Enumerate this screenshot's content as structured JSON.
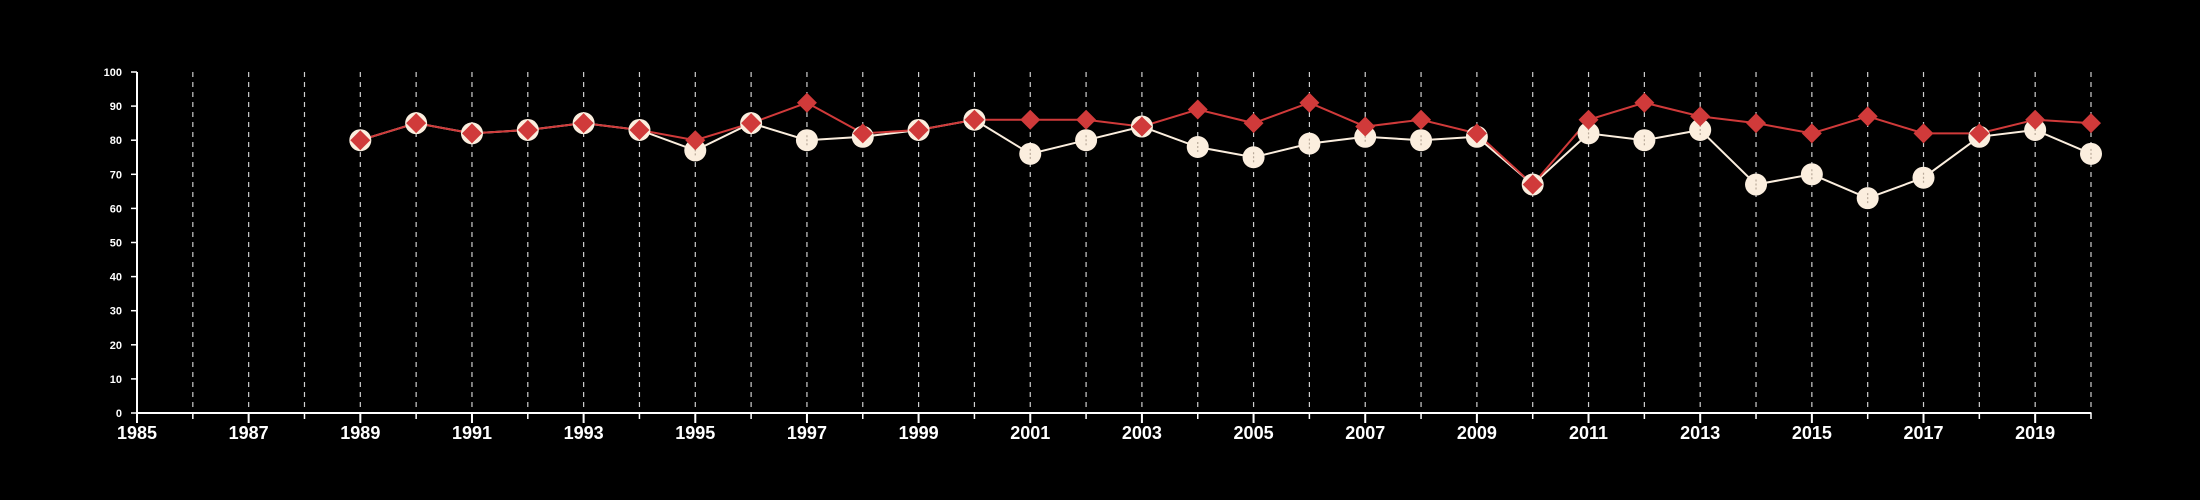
{
  "chart_data": {
    "type": "line",
    "title": "",
    "xlabel": "",
    "ylabel": "",
    "x": [
      1989,
      1990,
      1991,
      1992,
      1993,
      1994,
      1995,
      1996,
      1997,
      1998,
      1999,
      2000,
      2001,
      2002,
      2003,
      2004,
      2005,
      2006,
      2007,
      2008,
      2009,
      2010,
      2011,
      2012,
      2013,
      2014,
      2015,
      2016,
      2017,
      2018,
      2019,
      2020
    ],
    "xlim": [
      1985,
      2020
    ],
    "ylim": [
      0,
      100
    ],
    "x_ticks": [
      1985,
      1987,
      1989,
      1991,
      1993,
      1995,
      1997,
      1999,
      2001,
      2003,
      2005,
      2007,
      2009,
      2011,
      2013,
      2015,
      2017,
      2019
    ],
    "y_ticks": [
      0,
      10,
      20,
      30,
      40,
      50,
      60,
      70,
      80,
      90,
      100
    ],
    "grid": {
      "vertical": true,
      "horizontal": false,
      "style": "dashed"
    },
    "series": [
      {
        "color": "#fbeede",
        "marker": "circle",
        "values": [
          80,
          85,
          82,
          83,
          85,
          83,
          77,
          85,
          80,
          81,
          83,
          86,
          76,
          80,
          84,
          78,
          75,
          79,
          81,
          80,
          81,
          67,
          82,
          80,
          83,
          67,
          70,
          63,
          69,
          81,
          83,
          76
        ]
      },
      {
        "color": "#d03a3a",
        "marker": "diamond",
        "values": [
          80,
          85,
          82,
          83,
          85,
          83,
          80,
          85,
          91,
          82,
          83,
          86,
          86,
          86,
          84,
          89,
          85,
          91,
          84,
          86,
          82,
          67,
          86,
          91,
          87,
          85,
          82,
          87,
          82,
          82,
          86,
          85
        ]
      }
    ]
  }
}
